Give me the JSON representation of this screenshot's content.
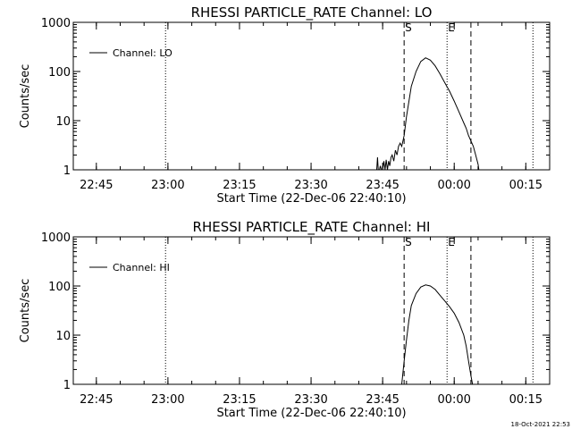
{
  "timestamp": "18-Oct-2021 22:53",
  "chart_data": [
    {
      "type": "line",
      "title": "RHESSI PARTICLE_RATE Channel: LO",
      "xlabel": "Start Time (22-Dec-06 22:40:10)",
      "ylabel": "Counts/sec",
      "y_scale": "log",
      "ylim": [
        1,
        1000
      ],
      "y_ticks": [
        "1",
        "10",
        "100",
        "1000"
      ],
      "x_ticks": [
        "22:45",
        "23:00",
        "23:15",
        "23:30",
        "23:45",
        "00:00",
        "00:15"
      ],
      "legend": {
        "label": "Channel: LO",
        "placement": "top-left"
      },
      "vlines": [
        {
          "time": "22:59:30",
          "style": "dotted"
        },
        {
          "time": "23:49:30",
          "style": "dashed",
          "label": "S"
        },
        {
          "time": "23:58:30",
          "style": "dotted",
          "label": "E"
        },
        {
          "time": "00:03:30",
          "style": "dashed"
        },
        {
          "time": "00:16:30",
          "style": "dotted"
        }
      ],
      "series": [
        {
          "name": "Channel: LO",
          "x": [
            "23:43:45",
            "23:43:55",
            "23:44:05",
            "23:44:15",
            "23:44:20",
            "23:44:30",
            "23:44:45",
            "23:45:00",
            "23:45:15",
            "23:45:30",
            "23:45:45",
            "23:46:00",
            "23:46:15",
            "23:46:30",
            "23:46:45",
            "23:47:00",
            "23:47:20",
            "23:47:40",
            "23:48:00",
            "23:48:20",
            "23:48:40",
            "23:49:00",
            "23:49:30",
            "23:50:00",
            "23:51:00",
            "23:52:00",
            "23:53:00",
            "23:54:00",
            "23:55:00",
            "23:56:00",
            "23:57:00",
            "23:58:00",
            "23:59:00",
            "00:00:00",
            "00:01:00",
            "00:02:00",
            "00:02:30",
            "00:03:00",
            "00:04:00",
            "00:04:30",
            "00:05:00",
            "00:05:10"
          ],
          "values": [
            1,
            1.8,
            1,
            1,
            1,
            1.2,
            1,
            1,
            1.5,
            1,
            1.6,
            1,
            1.5,
            1.2,
            1.8,
            2,
            1.5,
            2.5,
            2,
            3,
            3.5,
            3,
            5,
            12,
            50,
            100,
            160,
            190,
            170,
            130,
            90,
            60,
            40,
            25,
            15,
            9,
            7,
            5,
            3,
            2,
            1.3,
            1
          ]
        }
      ]
    },
    {
      "type": "line",
      "title": "RHESSI PARTICLE_RATE Channel: HI",
      "xlabel": "Start Time (22-Dec-06 22:40:10)",
      "ylabel": "Counts/sec",
      "y_scale": "log",
      "ylim": [
        1,
        1000
      ],
      "y_ticks": [
        "1",
        "10",
        "100",
        "1000"
      ],
      "x_ticks": [
        "22:45",
        "23:00",
        "23:15",
        "23:30",
        "23:45",
        "00:00",
        "00:15"
      ],
      "legend": {
        "label": "Channel: HI",
        "placement": "top-left"
      },
      "vlines": [
        {
          "time": "22:59:30",
          "style": "dotted"
        },
        {
          "time": "23:49:30",
          "style": "dashed",
          "label": "S"
        },
        {
          "time": "23:58:30",
          "style": "dotted",
          "label": "E"
        },
        {
          "time": "00:03:30",
          "style": "dashed"
        },
        {
          "time": "00:16:30",
          "style": "dotted"
        }
      ],
      "series": [
        {
          "name": "Channel: HI",
          "x": [
            "23:49:00",
            "23:49:30",
            "23:50:00",
            "23:50:30",
            "23:51:00",
            "23:52:00",
            "23:53:00",
            "23:54:00",
            "23:55:00",
            "23:56:00",
            "23:57:00",
            "23:58:00",
            "23:59:00",
            "00:00:00",
            "00:01:00",
            "00:02:00",
            "00:02:30",
            "00:03:00",
            "00:03:30",
            "00:03:50"
          ],
          "values": [
            1,
            3,
            8,
            20,
            40,
            70,
            95,
            105,
            100,
            85,
            65,
            50,
            38,
            28,
            18,
            10,
            6,
            3,
            1.5,
            1
          ]
        }
      ]
    }
  ]
}
